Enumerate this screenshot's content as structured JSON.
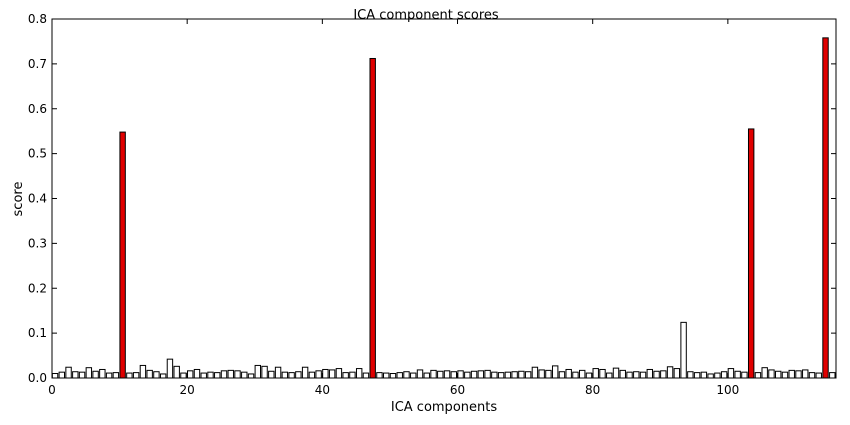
{
  "chart_data": {
    "type": "bar",
    "title": "ICA component scores",
    "xlabel": "ICA components",
    "ylabel": "score",
    "xlim": [
      0,
      116
    ],
    "ylim": [
      0,
      0.8
    ],
    "xticks": [
      0,
      20,
      40,
      60,
      80,
      100
    ],
    "yticks": [
      0.0,
      0.1,
      0.2,
      0.3,
      0.4,
      0.5,
      0.6,
      0.7,
      0.8
    ],
    "grid": false,
    "bar_color": "#ffffff",
    "highlight_color": "#e00000",
    "highlighted_components": [
      10,
      47,
      103,
      114
    ],
    "x": [
      0,
      1,
      2,
      3,
      4,
      5,
      6,
      7,
      8,
      9,
      10,
      11,
      12,
      13,
      14,
      15,
      16,
      17,
      18,
      19,
      20,
      21,
      22,
      23,
      24,
      25,
      26,
      27,
      28,
      29,
      30,
      31,
      32,
      33,
      34,
      35,
      36,
      37,
      38,
      39,
      40,
      41,
      42,
      43,
      44,
      45,
      46,
      47,
      48,
      49,
      50,
      51,
      52,
      53,
      54,
      55,
      56,
      57,
      58,
      59,
      60,
      61,
      62,
      63,
      64,
      65,
      66,
      67,
      68,
      69,
      70,
      71,
      72,
      73,
      74,
      75,
      76,
      77,
      78,
      79,
      80,
      81,
      82,
      83,
      84,
      85,
      86,
      87,
      88,
      89,
      90,
      91,
      92,
      93,
      94,
      95,
      96,
      97,
      98,
      99,
      100,
      101,
      102,
      103,
      104,
      105,
      106,
      107,
      108,
      109,
      110,
      111,
      112,
      113,
      114,
      115
    ],
    "values": [
      0.01,
      0.013,
      0.024,
      0.014,
      0.013,
      0.023,
      0.015,
      0.019,
      0.011,
      0.012,
      0.548,
      0.011,
      0.012,
      0.028,
      0.017,
      0.014,
      0.009,
      0.042,
      0.026,
      0.011,
      0.016,
      0.019,
      0.011,
      0.013,
      0.012,
      0.016,
      0.017,
      0.016,
      0.013,
      0.009,
      0.028,
      0.026,
      0.015,
      0.024,
      0.013,
      0.012,
      0.014,
      0.024,
      0.013,
      0.016,
      0.019,
      0.018,
      0.021,
      0.012,
      0.013,
      0.021,
      0.011,
      0.712,
      0.012,
      0.011,
      0.01,
      0.012,
      0.014,
      0.011,
      0.018,
      0.011,
      0.017,
      0.015,
      0.016,
      0.014,
      0.016,
      0.013,
      0.015,
      0.016,
      0.017,
      0.013,
      0.012,
      0.013,
      0.014,
      0.015,
      0.014,
      0.024,
      0.018,
      0.017,
      0.027,
      0.014,
      0.019,
      0.013,
      0.017,
      0.011,
      0.021,
      0.019,
      0.011,
      0.022,
      0.017,
      0.013,
      0.014,
      0.013,
      0.019,
      0.015,
      0.016,
      0.025,
      0.021,
      0.124,
      0.014,
      0.012,
      0.013,
      0.009,
      0.011,
      0.014,
      0.021,
      0.015,
      0.013,
      0.555,
      0.012,
      0.023,
      0.018,
      0.015,
      0.013,
      0.017,
      0.016,
      0.018,
      0.012,
      0.011,
      0.758,
      0.012
    ]
  }
}
